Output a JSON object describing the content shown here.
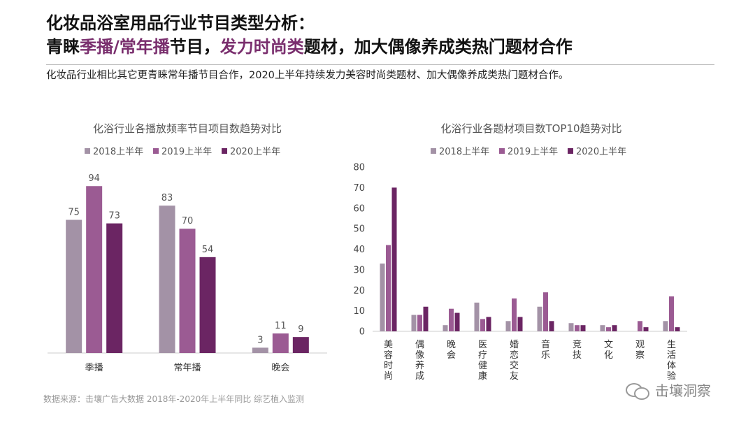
{
  "header": {
    "title_line1": "化妆品浴室用品行业节目类型分析：",
    "title_line2_a": "青睐",
    "title_line2_hl1": "季播/常年播",
    "title_line2_b": "节目，",
    "title_line2_hl2": "发力时尚类",
    "title_line2_c": "题材，加大偶像养成类热门题材合作",
    "subtitle": "化妆品行业相比其它更青睐常年播节目合作，2020上半年持续发力美容时尚类题材、加大偶像养成类热门题材合作。"
  },
  "colors": {
    "s2018": "#a392a6",
    "s2019": "#9b5b93",
    "s2020": "#6b2563",
    "highlight": "#7a2f6e"
  },
  "chart_data": [
    {
      "type": "bar",
      "title": "化浴行业各播放频率节目项目数趋势对比",
      "categories": [
        "季播",
        "常年播",
        "晚会"
      ],
      "series": [
        {
          "name": "2018上半年",
          "values": [
            75,
            83,
            3
          ]
        },
        {
          "name": "2019上半年",
          "values": [
            94,
            70,
            11
          ]
        },
        {
          "name": "2020上半年",
          "values": [
            73,
            54,
            9
          ]
        }
      ],
      "ylim": [
        0,
        100
      ],
      "data_labels": true,
      "legend": "top"
    },
    {
      "type": "bar",
      "title": "化浴行业各题材项目数TOP10趋势对比",
      "categories": [
        "美容时尚",
        "偶像养成",
        "晚会",
        "医疗健康",
        "婚恋交友",
        "音乐",
        "竞技",
        "文化",
        "观察",
        "生活体验"
      ],
      "series": [
        {
          "name": "2018上半年",
          "values": [
            33,
            8,
            3,
            14,
            5,
            12,
            4,
            3,
            0,
            5
          ]
        },
        {
          "name": "2019上半年",
          "values": [
            42,
            8,
            11,
            6,
            16,
            19,
            3,
            2,
            5,
            17
          ]
        },
        {
          "name": "2020上半年",
          "values": [
            70,
            12,
            9,
            7,
            7,
            5,
            3,
            3,
            2,
            2
          ]
        }
      ],
      "yticks": [
        "0",
        "10",
        "20",
        "30",
        "40",
        "50",
        "60",
        "70",
        "80"
      ],
      "ylim": [
        0,
        80
      ],
      "legend": "top"
    }
  ],
  "footer": {
    "source": "数据来源：击壤广告大数据 2018年-2020年上半年同比 综艺植入监测",
    "watermark": "击壤洞察"
  }
}
